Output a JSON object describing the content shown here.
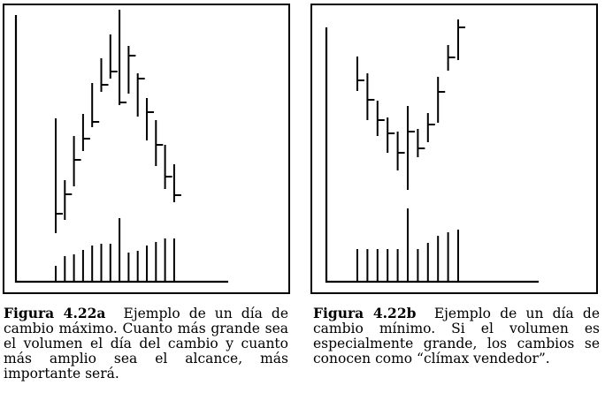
{
  "chart_data": [
    {
      "type": "bar",
      "subtype": "high-low-close with volume",
      "figure_label": "Figura 4.22a",
      "caption": "Ejemplo de un día de cambio máximo. Cuanto más grande sea el volumen el día del cambio y cuanto más amplio sea el alcance, más importante será.",
      "price_bars": [
        {
          "high": 185,
          "low": 55,
          "close": 77
        },
        {
          "high": 115,
          "low": 70,
          "close": 99
        },
        {
          "high": 165,
          "low": 108,
          "close": 138
        },
        {
          "high": 190,
          "low": 148,
          "close": 162
        },
        {
          "high": 225,
          "low": 175,
          "close": 181
        },
        {
          "high": 253,
          "low": 215,
          "close": 223
        },
        {
          "high": 280,
          "low": 230,
          "close": 238
        },
        {
          "high": 308,
          "low": 200,
          "close": 203
        },
        {
          "high": 267,
          "low": 213,
          "close": 256
        },
        {
          "high": 236,
          "low": 187,
          "close": 230
        },
        {
          "high": 208,
          "low": 160,
          "close": 192
        },
        {
          "high": 183,
          "low": 131,
          "close": 155
        },
        {
          "high": 155,
          "low": 105,
          "close": 119
        },
        {
          "high": 133,
          "low": 90,
          "close": 98
        }
      ],
      "volume": [
        18,
        29,
        31,
        36,
        41,
        43,
        43,
        72,
        33,
        35,
        41,
        45,
        49,
        49
      ],
      "axes": {
        "y_axis": true,
        "x_axis": true,
        "ticks": false,
        "grid": false
      }
    },
    {
      "type": "bar",
      "subtype": "high-low-close with volume",
      "figure_label": "Figura 4.22b",
      "caption": "Ejemplo de un día de cambio mínimo. Si el volumen es especialmente grande, los cambios se conocen como “clímax vendedor”.",
      "price_bars": [
        {
          "high": 255,
          "low": 216,
          "close": 228
        },
        {
          "high": 236,
          "low": 183,
          "close": 206
        },
        {
          "high": 205,
          "low": 165,
          "close": 183
        },
        {
          "high": 186,
          "low": 146,
          "close": 168
        },
        {
          "high": 170,
          "low": 126,
          "close": 146
        },
        {
          "high": 199,
          "low": 104,
          "close": 170
        },
        {
          "high": 173,
          "low": 141,
          "close": 151
        },
        {
          "high": 191,
          "low": 158,
          "close": 178
        },
        {
          "high": 232,
          "low": 180,
          "close": 215
        },
        {
          "high": 268,
          "low": 239,
          "close": 254
        },
        {
          "high": 297,
          "low": 251,
          "close": 288
        }
      ],
      "volume": [
        37,
        37,
        37,
        37,
        37,
        83,
        37,
        44,
        52,
        56,
        59
      ],
      "axes": {
        "y_axis": true,
        "x_axis": true,
        "ticks": false,
        "grid": false
      }
    }
  ]
}
